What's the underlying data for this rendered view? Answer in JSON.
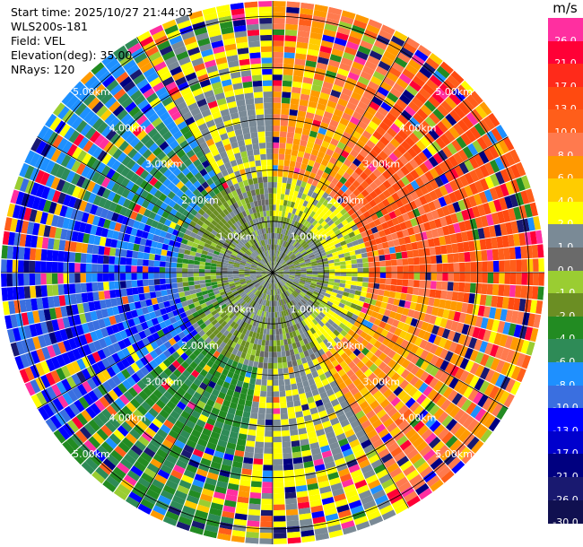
{
  "header": {
    "start_time": "Start time: 2025/10/27 21:44:03",
    "instrument": "WLS200s-181",
    "field": "Field: VEL",
    "elevation": "Elevation(deg): 35.00",
    "nrays": "NRays: 120"
  },
  "colorbar": {
    "unit": "m/s",
    "bins": [
      {
        "label": "26.0",
        "color": "#ff2fa0"
      },
      {
        "label": "21.0",
        "color": "#ff0036"
      },
      {
        "label": "17.0",
        "color": "#ff2a1a"
      },
      {
        "label": "13.0",
        "color": "#ff4a10"
      },
      {
        "label": "10.0",
        "color": "#ff5e1a"
      },
      {
        "label": "8.0",
        "color": "#ff7a4e"
      },
      {
        "label": "6.0",
        "color": "#ff9a00"
      },
      {
        "label": "4.0",
        "color": "#ffcc00"
      },
      {
        "label": "2.0",
        "color": "#ffff00"
      },
      {
        "label": "1.0",
        "color": "#7a8a96"
      },
      {
        "label": "0.0",
        "color": "#6a6a6a"
      },
      {
        "label": "-1.0",
        "color": "#9acd32"
      },
      {
        "label": "-2.0",
        "color": "#6b8e23"
      },
      {
        "label": "-4.0",
        "color": "#228b22"
      },
      {
        "label": "-6.0",
        "color": "#2e8b57"
      },
      {
        "label": "-8.0",
        "color": "#1e90ff"
      },
      {
        "label": "-10.0",
        "color": "#3a6fe0"
      },
      {
        "label": "-13.0",
        "color": "#0000ff"
      },
      {
        "label": "-17.0",
        "color": "#0000cd"
      },
      {
        "label": "-21.0",
        "color": "#000080"
      },
      {
        "label": "-26.0",
        "color": "#191970"
      },
      {
        "label": "-30.0",
        "color": "#101050"
      }
    ]
  },
  "range_rings": [
    {
      "range_km": 1,
      "label": "1.00km"
    },
    {
      "range_km": 2,
      "label": "2.00km"
    },
    {
      "range_km": 3,
      "label": "3.00km"
    },
    {
      "range_km": 4,
      "label": "4.00km"
    },
    {
      "range_km": 5,
      "label": "5.00km"
    }
  ],
  "chart_data": {
    "type": "heatmap",
    "subtype": "radar-ppi",
    "field": "VEL",
    "units": "m/s",
    "nrays": 120,
    "elevation_deg": 35.0,
    "max_range_km": 5.3,
    "rings_km": [
      1,
      2,
      3,
      4,
      5
    ],
    "sectors": [
      {
        "azimuth_deg": [
          0,
          35
        ],
        "dominant_velocity_ms": 8.0
      },
      {
        "azimuth_deg": [
          35,
          100
        ],
        "dominant_velocity_ms": 13.0
      },
      {
        "azimuth_deg": [
          100,
          150
        ],
        "dominant_velocity_ms": 8.0
      },
      {
        "azimuth_deg": [
          150,
          190
        ],
        "dominant_velocity_ms": 2.0
      },
      {
        "azimuth_deg": [
          190,
          230
        ],
        "dominant_velocity_ms": -4.0
      },
      {
        "azimuth_deg": [
          230,
          290
        ],
        "dominant_velocity_ms": -10.0
      },
      {
        "azimuth_deg": [
          290,
          330
        ],
        "dominant_velocity_ms": -6.0
      },
      {
        "azimuth_deg": [
          330,
          360
        ],
        "dominant_velocity_ms": 2.0
      }
    ]
  }
}
